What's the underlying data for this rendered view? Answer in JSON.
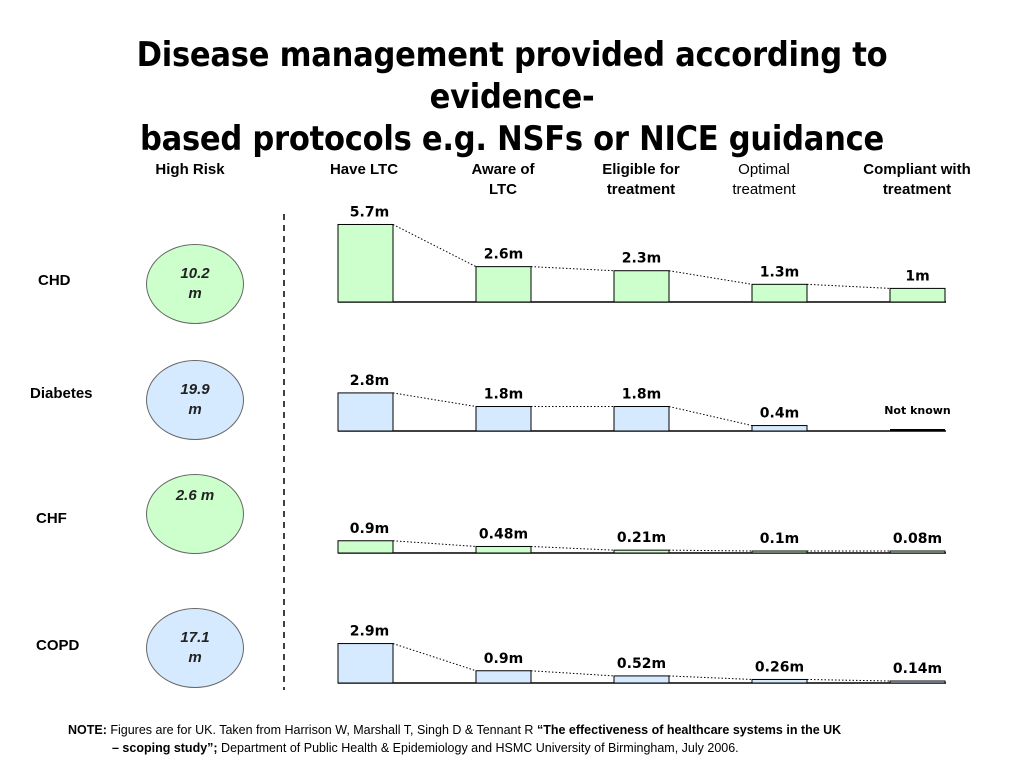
{
  "title": {
    "line1": "Disease management provided according to evidence-",
    "line2": "based protocols e.g. NSFs or NICE guidance"
  },
  "columns": {
    "high_risk": "High Risk",
    "have_ltc": "Have LTC",
    "aware_ltc_1": "Aware of",
    "aware_ltc_2": "LTC",
    "eligible_1": "Eligible for",
    "eligible_2": "treatment",
    "optimal_1": "Optimal",
    "optimal_2": "treatment",
    "compliant_1": "Compliant with",
    "compliant_2": "treatment"
  },
  "rows": {
    "chd": {
      "label": "CHD",
      "high_risk_1": "10.2",
      "high_risk_2": "m"
    },
    "diabetes": {
      "label": "Diabetes",
      "high_risk_1": "19.9",
      "high_risk_2": "m"
    },
    "chf": {
      "label": "CHF",
      "high_risk_1": "2.6 m",
      "high_risk_2": ""
    },
    "copd": {
      "label": "COPD",
      "high_risk_1": "17.1",
      "high_risk_2": "m"
    }
  },
  "colors": {
    "green_fill": "#ccffcc",
    "blue_fill": "#d5eaff",
    "bar_stroke": "#000000"
  },
  "chart_data": {
    "type": "bar",
    "categories": [
      "Have LTC",
      "Aware of LTC",
      "Eligible for treatment",
      "Optimal treatment",
      "Compliant with treatment"
    ],
    "series": [
      {
        "name": "CHD",
        "values": [
          5.7,
          2.6,
          2.3,
          1.3,
          1.0
        ],
        "labels": [
          "5.7m",
          "2.6m",
          "2.3m",
          "1.3m",
          "1m"
        ],
        "color": "#ccffcc"
      },
      {
        "name": "Diabetes",
        "values": [
          2.8,
          1.8,
          1.8,
          0.4,
          null
        ],
        "labels": [
          "2.8m",
          "1.8m",
          "1.8m",
          "0.4m",
          "Not known"
        ],
        "color": "#d5eaff"
      },
      {
        "name": "CHF",
        "values": [
          0.9,
          0.48,
          0.21,
          0.1,
          0.08
        ],
        "labels": [
          "0.9m",
          "0.48m",
          "0.21m",
          "0.1m",
          "0.08m"
        ],
        "color": "#ccffcc"
      },
      {
        "name": "COPD",
        "values": [
          2.9,
          0.9,
          0.52,
          0.26,
          0.14
        ],
        "labels": [
          "2.9m",
          "0.9m",
          "0.52m",
          "0.26m",
          "0.14m"
        ],
        "color": "#d5eaff"
      }
    ],
    "ylabel": "",
    "xlabel": ""
  },
  "note": {
    "prefix": "NOTE:",
    "text1": " Figures are for UK.  Taken from Harrison W, Marshall T, Singh D & Tennant R ",
    "bold1": "“The effectiveness of healthcare systems in the UK",
    "bold2": "– scoping study”;",
    "text2": " Department of Public Health & Epidemiology and HSMC University of Birmingham, July 2006."
  }
}
